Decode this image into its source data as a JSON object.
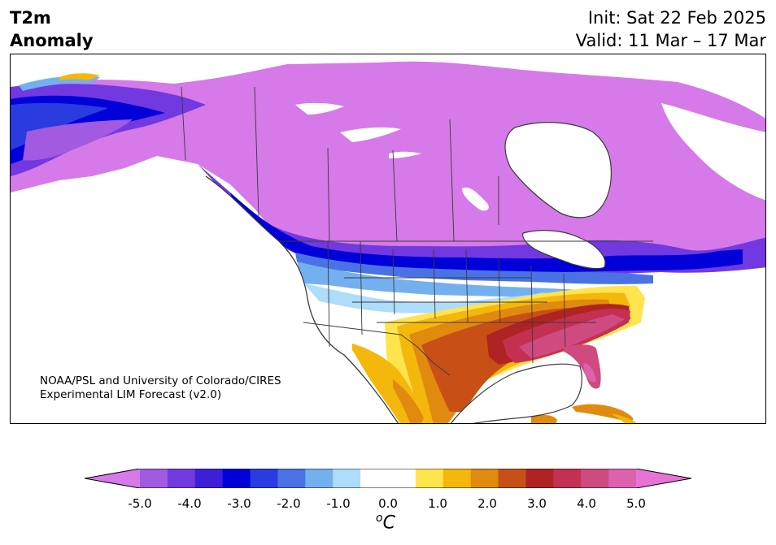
{
  "title": {
    "left_line1": "T2m",
    "left_line2": "Anomaly",
    "init": "Init: Sat 22 Feb 2025",
    "valid": "Valid: 11 Mar – 17 Mar"
  },
  "credit": {
    "line1": "NOAA/PSL and University of Colorado/CIRES",
    "line2": "Experimental LIM Forecast (v2.0)"
  },
  "colorbar": {
    "colors": [
      "#d57ae8",
      "#a15ae0",
      "#7139df",
      "#3d1fd8",
      "#0000d8",
      "#2a3be0",
      "#4a72e5",
      "#74b0f0",
      "#aedcfb",
      "#ffffff",
      "#ffffff",
      "#ffe44d",
      "#f4b70b",
      "#e08a10",
      "#c85017",
      "#b02324",
      "#c43052",
      "#cf4a7e",
      "#dc62ad",
      "#e872d5"
    ],
    "unit_symbol": "C",
    "unit_sup": "o",
    "tick_labels": [
      "-5.0",
      "-4.0",
      "-3.0",
      "-2.0",
      "-1.0",
      "0.0",
      "1.0",
      "2.0",
      "3.0",
      "4.0",
      "5.0"
    ]
  },
  "map_colors": {
    "water": "#ffffff",
    "coast": "#3a3a3a",
    "border": "#3a3a3a"
  }
}
